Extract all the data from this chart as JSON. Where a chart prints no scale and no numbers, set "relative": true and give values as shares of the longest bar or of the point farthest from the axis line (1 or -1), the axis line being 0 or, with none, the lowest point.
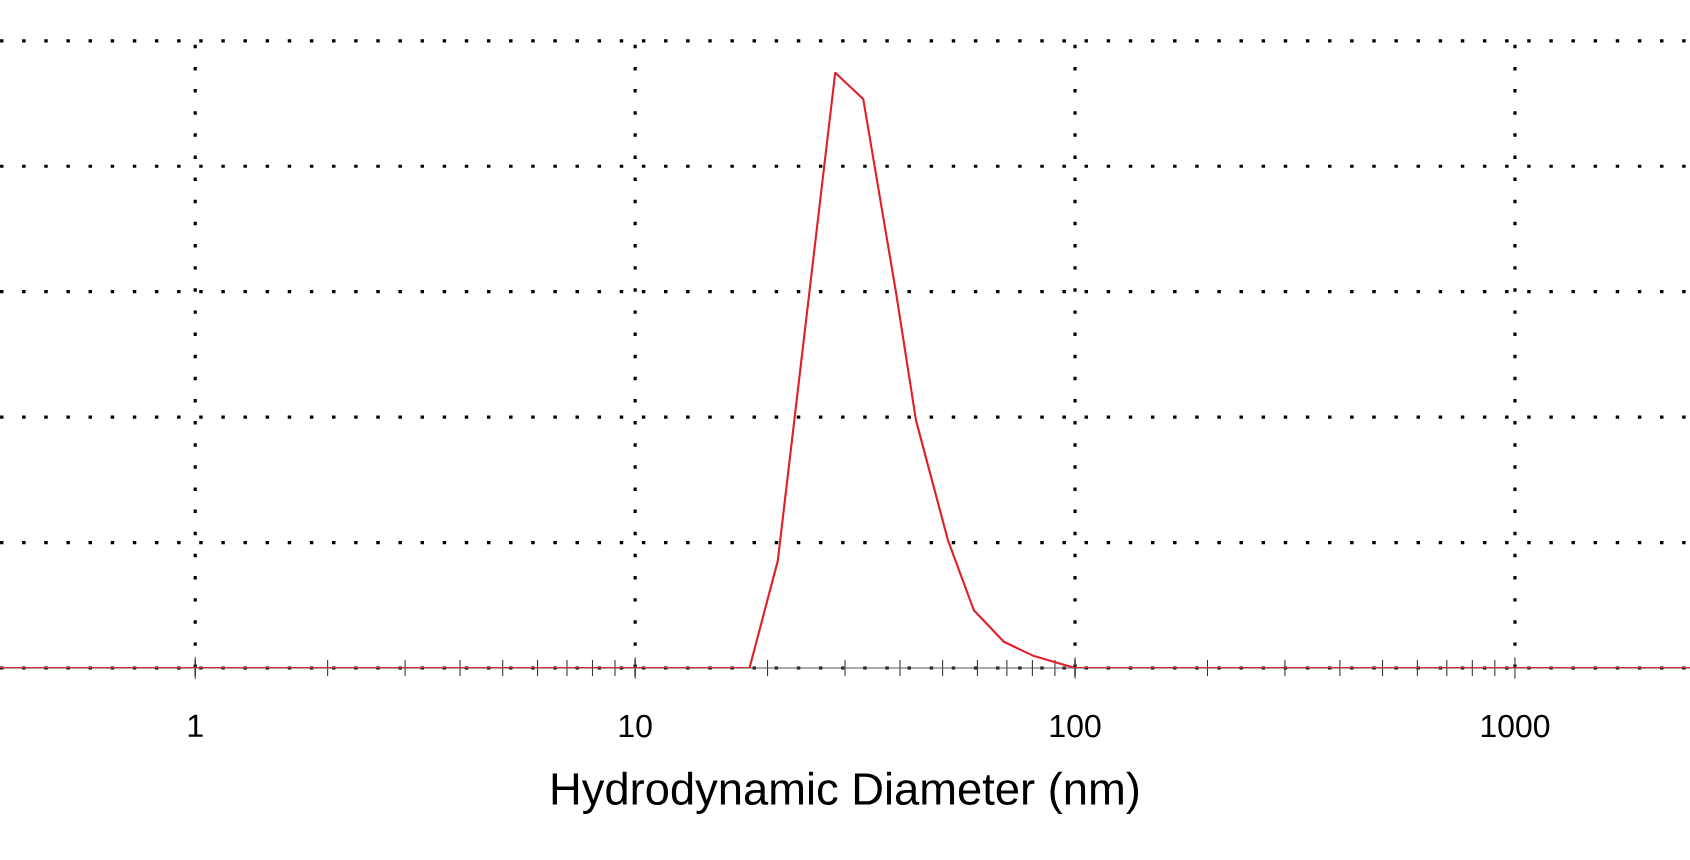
{
  "chart_data": {
    "type": "line",
    "xlabel": "Hydrodynamic Diameter (nm)",
    "x": [
      0.36,
      18.2,
      21.1,
      28.5,
      33.0,
      39.2,
      43.5,
      51.4,
      58.9,
      68.9,
      80.7,
      100,
      2500
    ],
    "values": [
      0,
      0,
      0.18,
      1,
      0.956,
      0.63,
      0.416,
      0.215,
      0.097,
      0.044,
      0.02,
      0,
      0
    ],
    "color": "#e0202a",
    "relative": true,
    "log": "x",
    "xlim": [
      0.36,
      2500
    ],
    "xticks": [
      1,
      10,
      100,
      1000
    ],
    "grid": true,
    "marker": "none",
    "line_style": "solid"
  }
}
